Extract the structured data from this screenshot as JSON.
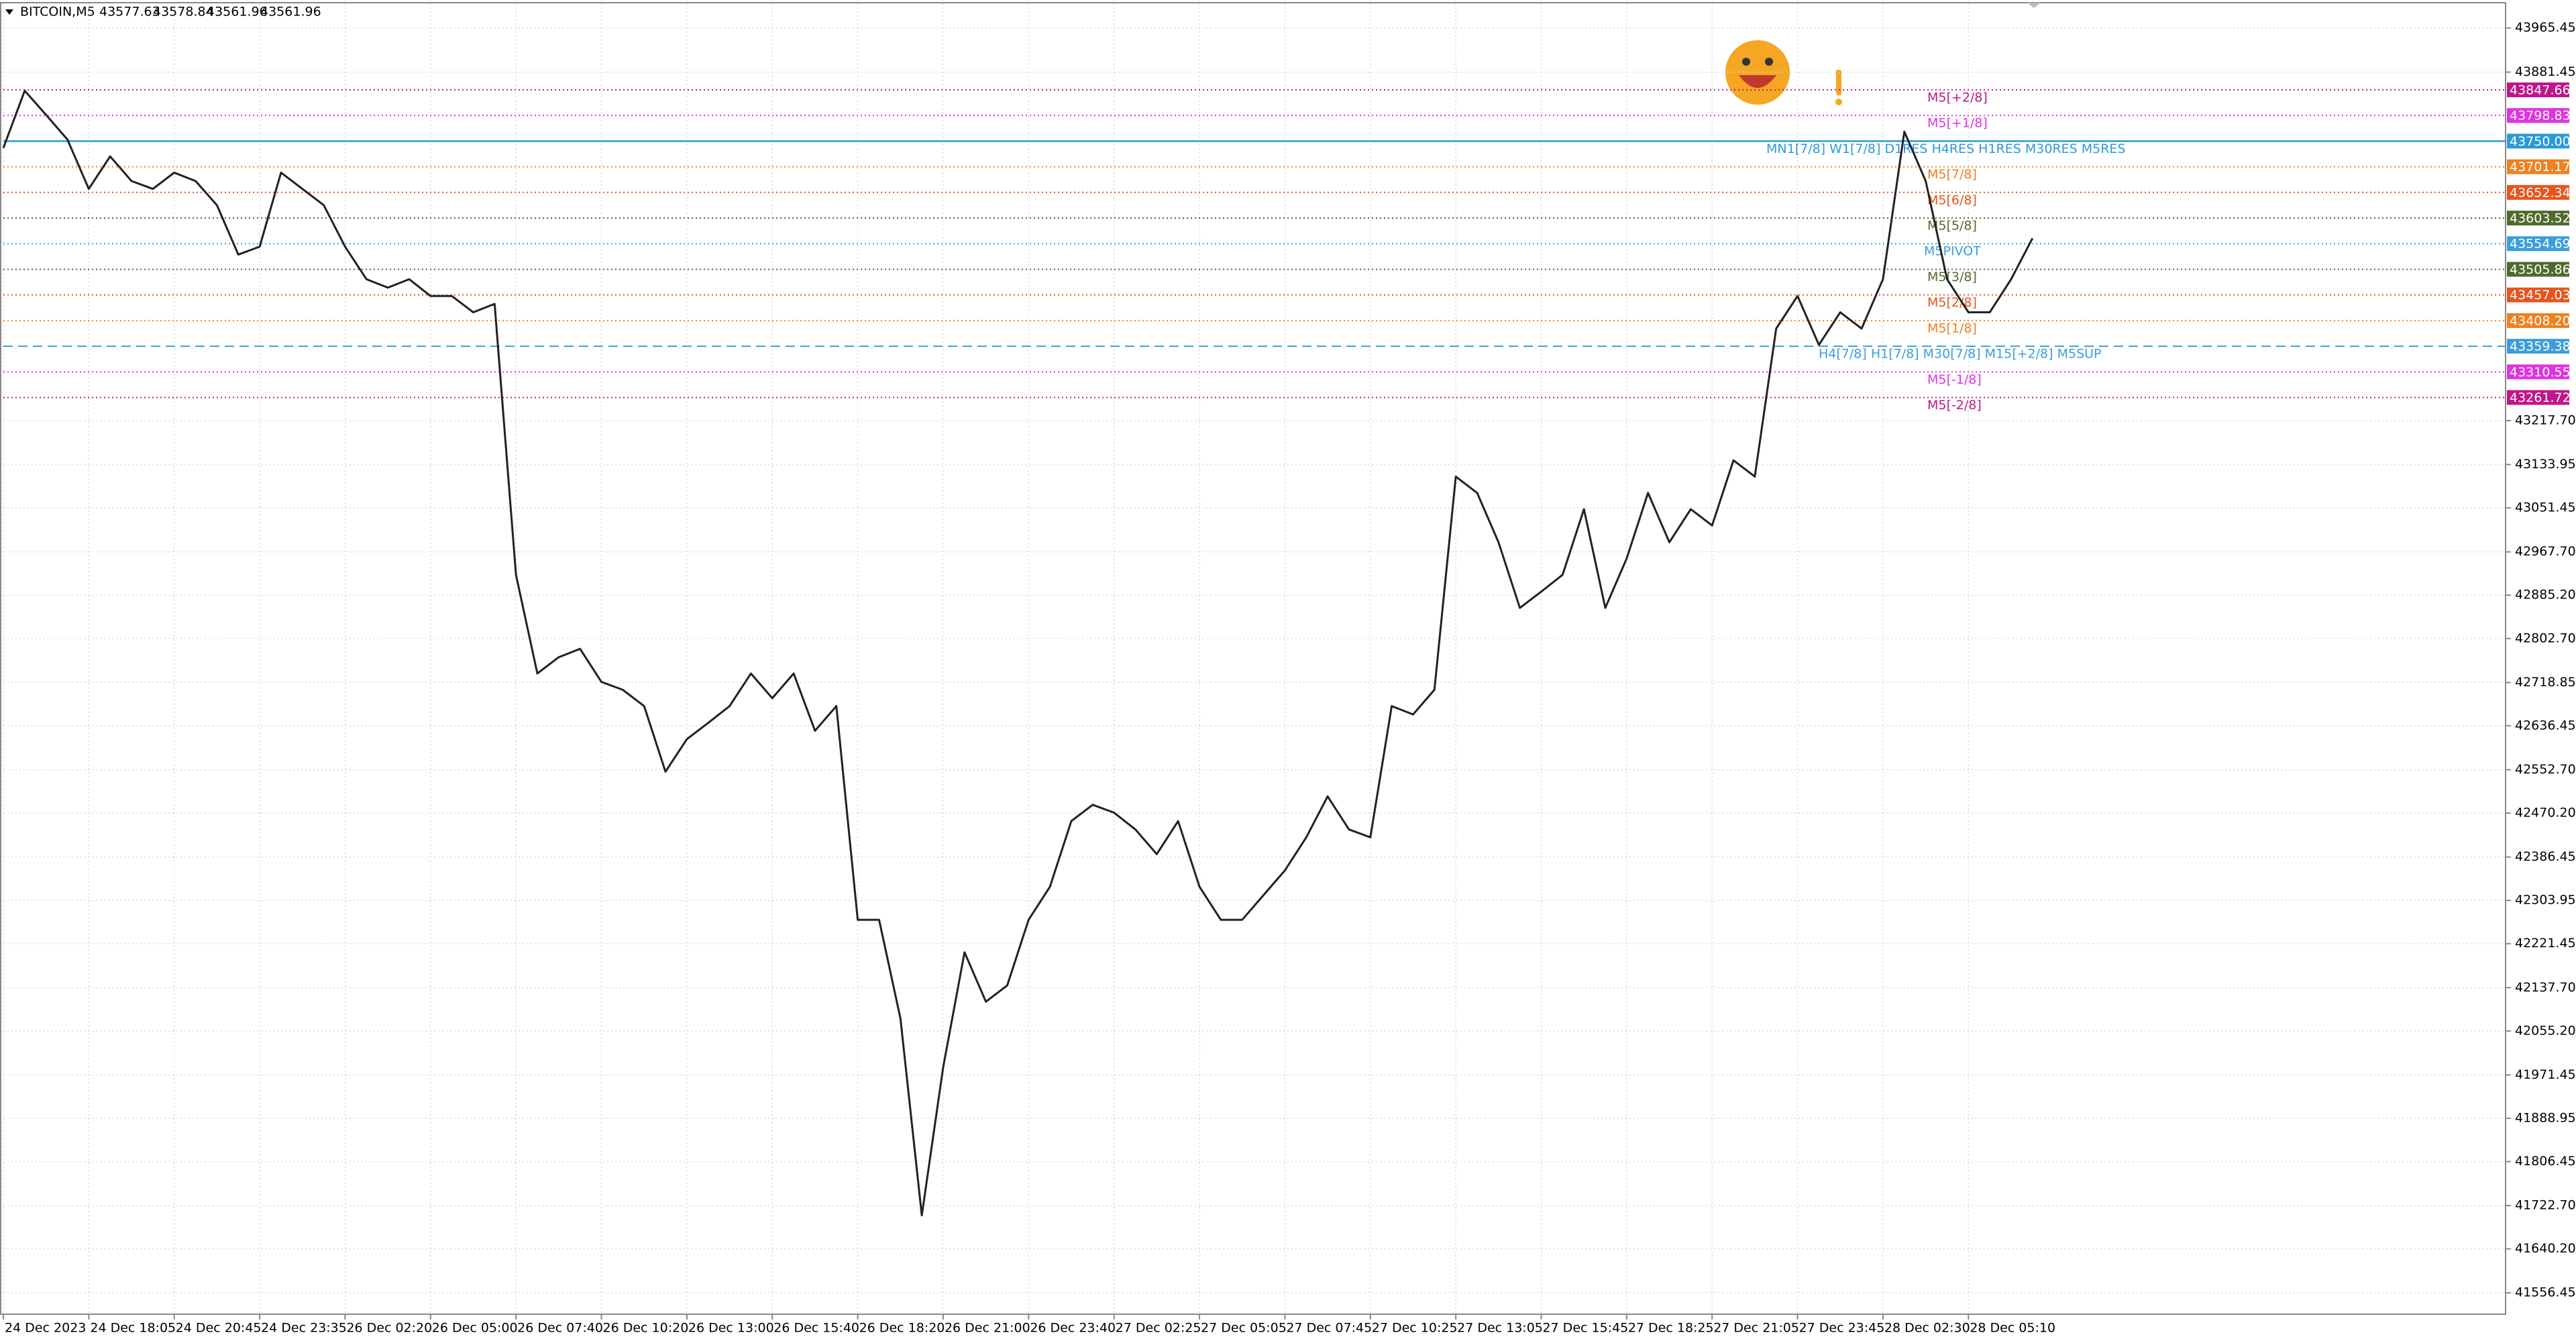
{
  "chart_data": {
    "type": "line",
    "title": "BITCOIN,M5",
    "ohlc": [
      43577.63,
      43578.84,
      43561.96,
      43561.96
    ],
    "categories": [
      "24 Dec 2023",
      null,
      null,
      null,
      "24 Dec 18:05",
      null,
      null,
      null,
      "24 Dec 20:45",
      null,
      null,
      null,
      "24 Dec 23:35",
      null,
      null,
      null,
      "26 Dec 02:20",
      null,
      null,
      null,
      "26 Dec 05:00",
      null,
      null,
      null,
      "26 Dec 07:40",
      null,
      null,
      null,
      "26 Dec 10:20",
      null,
      null,
      null,
      "26 Dec 13:00",
      null,
      null,
      null,
      "26 Dec 15:40",
      null,
      null,
      null,
      "26 Dec 18:20",
      null,
      null,
      null,
      "26 Dec 21:00",
      null,
      null,
      null,
      "26 Dec 23:40",
      null,
      null,
      null,
      "27 Dec 02:25",
      null,
      null,
      null,
      "27 Dec 05:05",
      null,
      null,
      null,
      "27 Dec 07:45",
      null,
      null,
      null,
      "27 Dec 10:25",
      null,
      null,
      null,
      "27 Dec 13:05",
      null,
      null,
      null,
      "27 Dec 15:45",
      null,
      null,
      null,
      "27 Dec 18:25",
      null,
      null,
      null,
      "27 Dec 21:05",
      null,
      null,
      null,
      "27 Dec 23:45",
      null,
      null,
      null,
      "28 Dec 02:30",
      null,
      null,
      null,
      "28 Dec 05:10",
      null,
      null,
      null
    ],
    "series": [
      {
        "name": "BITCOIN",
        "color": "#222222",
        "values": [
          43737,
          43846,
          43800,
          43753,
          43659,
          43721,
          43674,
          43659,
          43690,
          43674,
          43628,
          43534,
          43549,
          43690,
          43659,
          43628,
          43549,
          43487,
          43471,
          43487,
          43455,
          43455,
          43424,
          43440,
          42924,
          42736,
          42767,
          42783,
          42720,
          42705,
          42674,
          42549,
          42611,
          42642,
          42674,
          42736,
          42689,
          42736,
          42627,
          42674,
          42267,
          42267,
          42079,
          41704,
          41986,
          42205,
          42111,
          42142,
          42267,
          42330,
          42455,
          42486,
          42471,
          42439,
          42392,
          42455,
          42330,
          42267,
          42267,
          42314,
          42361,
          42424,
          42502,
          42439,
          42424,
          42674,
          42658,
          42705,
          43111,
          43080,
          42986,
          42861,
          42892,
          42924,
          43049,
          42861,
          42955,
          43080,
          42986,
          43049,
          43018,
          43142,
          43111,
          43393,
          43455,
          43362,
          43424,
          43393,
          43487,
          43768,
          43674,
          43487,
          43424,
          43424,
          43487,
          43565
        ]
      }
    ],
    "ylim": [
      41515.8,
      44012.4
    ],
    "yticks": [
      43965.45,
      43881.45,
      {
        "value": 43217.7,
        "label": "43217.70"
      },
      43133.95,
      43051.45,
      {
        "value": 42967.7,
        "label": "42967.70"
      },
      {
        "value": 42885.2,
        "label": "42885.20"
      },
      {
        "value": 42802.7,
        "label": "42802.70"
      },
      42718.85,
      42636.45,
      {
        "value": 42552.7,
        "label": "42552.70"
      },
      {
        "value": 42470.2,
        "label": "42470.20"
      },
      42386.45,
      42303.95,
      42221.45,
      {
        "value": 42137.7,
        "label": "42137.70"
      },
      {
        "value": 42055.2,
        "label": "42055.20"
      },
      41971.45,
      41888.95,
      41806.45,
      {
        "value": 41722.7,
        "label": "41722.70"
      },
      {
        "value": 41640.2,
        "label": "41640.20"
      },
      41556.45
    ],
    "grid": true,
    "levels": [
      {
        "name": "M5[+2/8]",
        "value": 43847.66,
        "color": "#c0168a",
        "style": "dotted"
      },
      {
        "name": "M5[+1/8]",
        "value": 43798.83,
        "color": "#e033e0",
        "style": "dotted"
      },
      {
        "name": "MN1[7/8] W1[7/8] D1RES H4RES H1RES M30RES M5RES",
        "value": 43750,
        "value_label": "43750.00",
        "color": "#2b9ad8",
        "style": "solid"
      },
      {
        "name": "M5[7/8]",
        "value": 43701.17,
        "color": "#f08020",
        "style": "dotted"
      },
      {
        "name": "M5[6/8]",
        "value": 43652.34,
        "color": "#e8541c",
        "style": "dotted"
      },
      {
        "name": "M5[5/8]",
        "value": 43603.52,
        "color": "#4f6b2e",
        "style": "dotted"
      },
      {
        "name": "M5PIVOT",
        "value": 43554.69,
        "color": "#3d9ddb",
        "style": "dotted"
      },
      {
        "name": "M5[3/8]",
        "value": 43505.86,
        "color": "#4f6b2e",
        "style": "dotted"
      },
      {
        "name": "M5[2/8]",
        "value": 43457.03,
        "color": "#e8541c",
        "style": "dotted"
      },
      {
        "name": "M5[1/8]",
        "value": 43408.2,
        "value_label": "43408.20",
        "color": "#f08020",
        "style": "dotted"
      },
      {
        "name": "H4[7/8] H1[7/8] M30[7/8] M15[+2/8] M5SUP",
        "value": 43359.38,
        "color": "#3d9ddb",
        "style": "dashed"
      },
      {
        "name": "M5[-1/8]",
        "value": 43310.55,
        "color": "#e033e0",
        "style": "dotted"
      },
      {
        "name": "M5[-2/8]",
        "value": 43261.72,
        "color": "#c0168a",
        "style": "dotted"
      }
    ]
  }
}
